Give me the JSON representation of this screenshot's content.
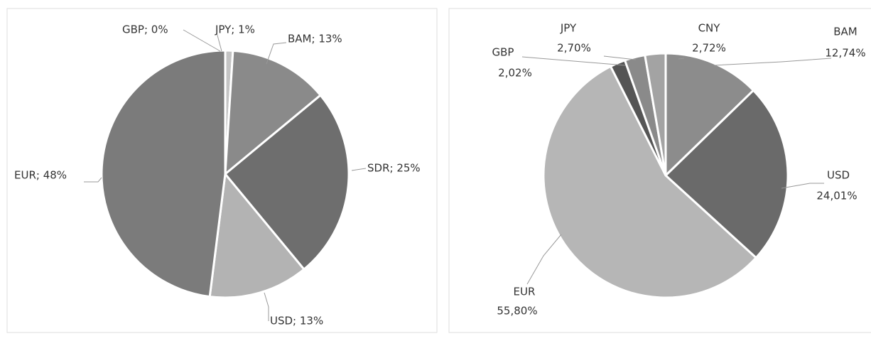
{
  "chart_data": [
    {
      "type": "pie",
      "values": [
        0,
        1,
        13,
        25,
        13,
        48
      ],
      "value_labels": [
        "GBP; 0%",
        "JPY; 1%",
        "BAM; 13%",
        "SDR; 25%",
        "USD; 13%",
        "EUR; 48%"
      ],
      "colors": [
        "#d0d0d0",
        "#c4c4c4",
        "#8a8a8a",
        "#6e6e6e",
        "#b3b3b3",
        "#7b7b7b"
      ]
    },
    {
      "type": "pie",
      "categories": [
        "BAM",
        "USD",
        "EUR",
        "GBP",
        "JPY",
        "CNY"
      ],
      "values": [
        12.74,
        24.01,
        55.8,
        2.02,
        2.7,
        2.72
      ],
      "value_labels": [
        "12,74%",
        "24,01%",
        "55,80%",
        "2,02%",
        "2,70%",
        "2,72%"
      ],
      "colors": [
        "#8c8c8c",
        "#6a6a6a",
        "#b6b6b6",
        "#555555",
        "#8a8a8a",
        "#a3a3a3"
      ]
    }
  ]
}
